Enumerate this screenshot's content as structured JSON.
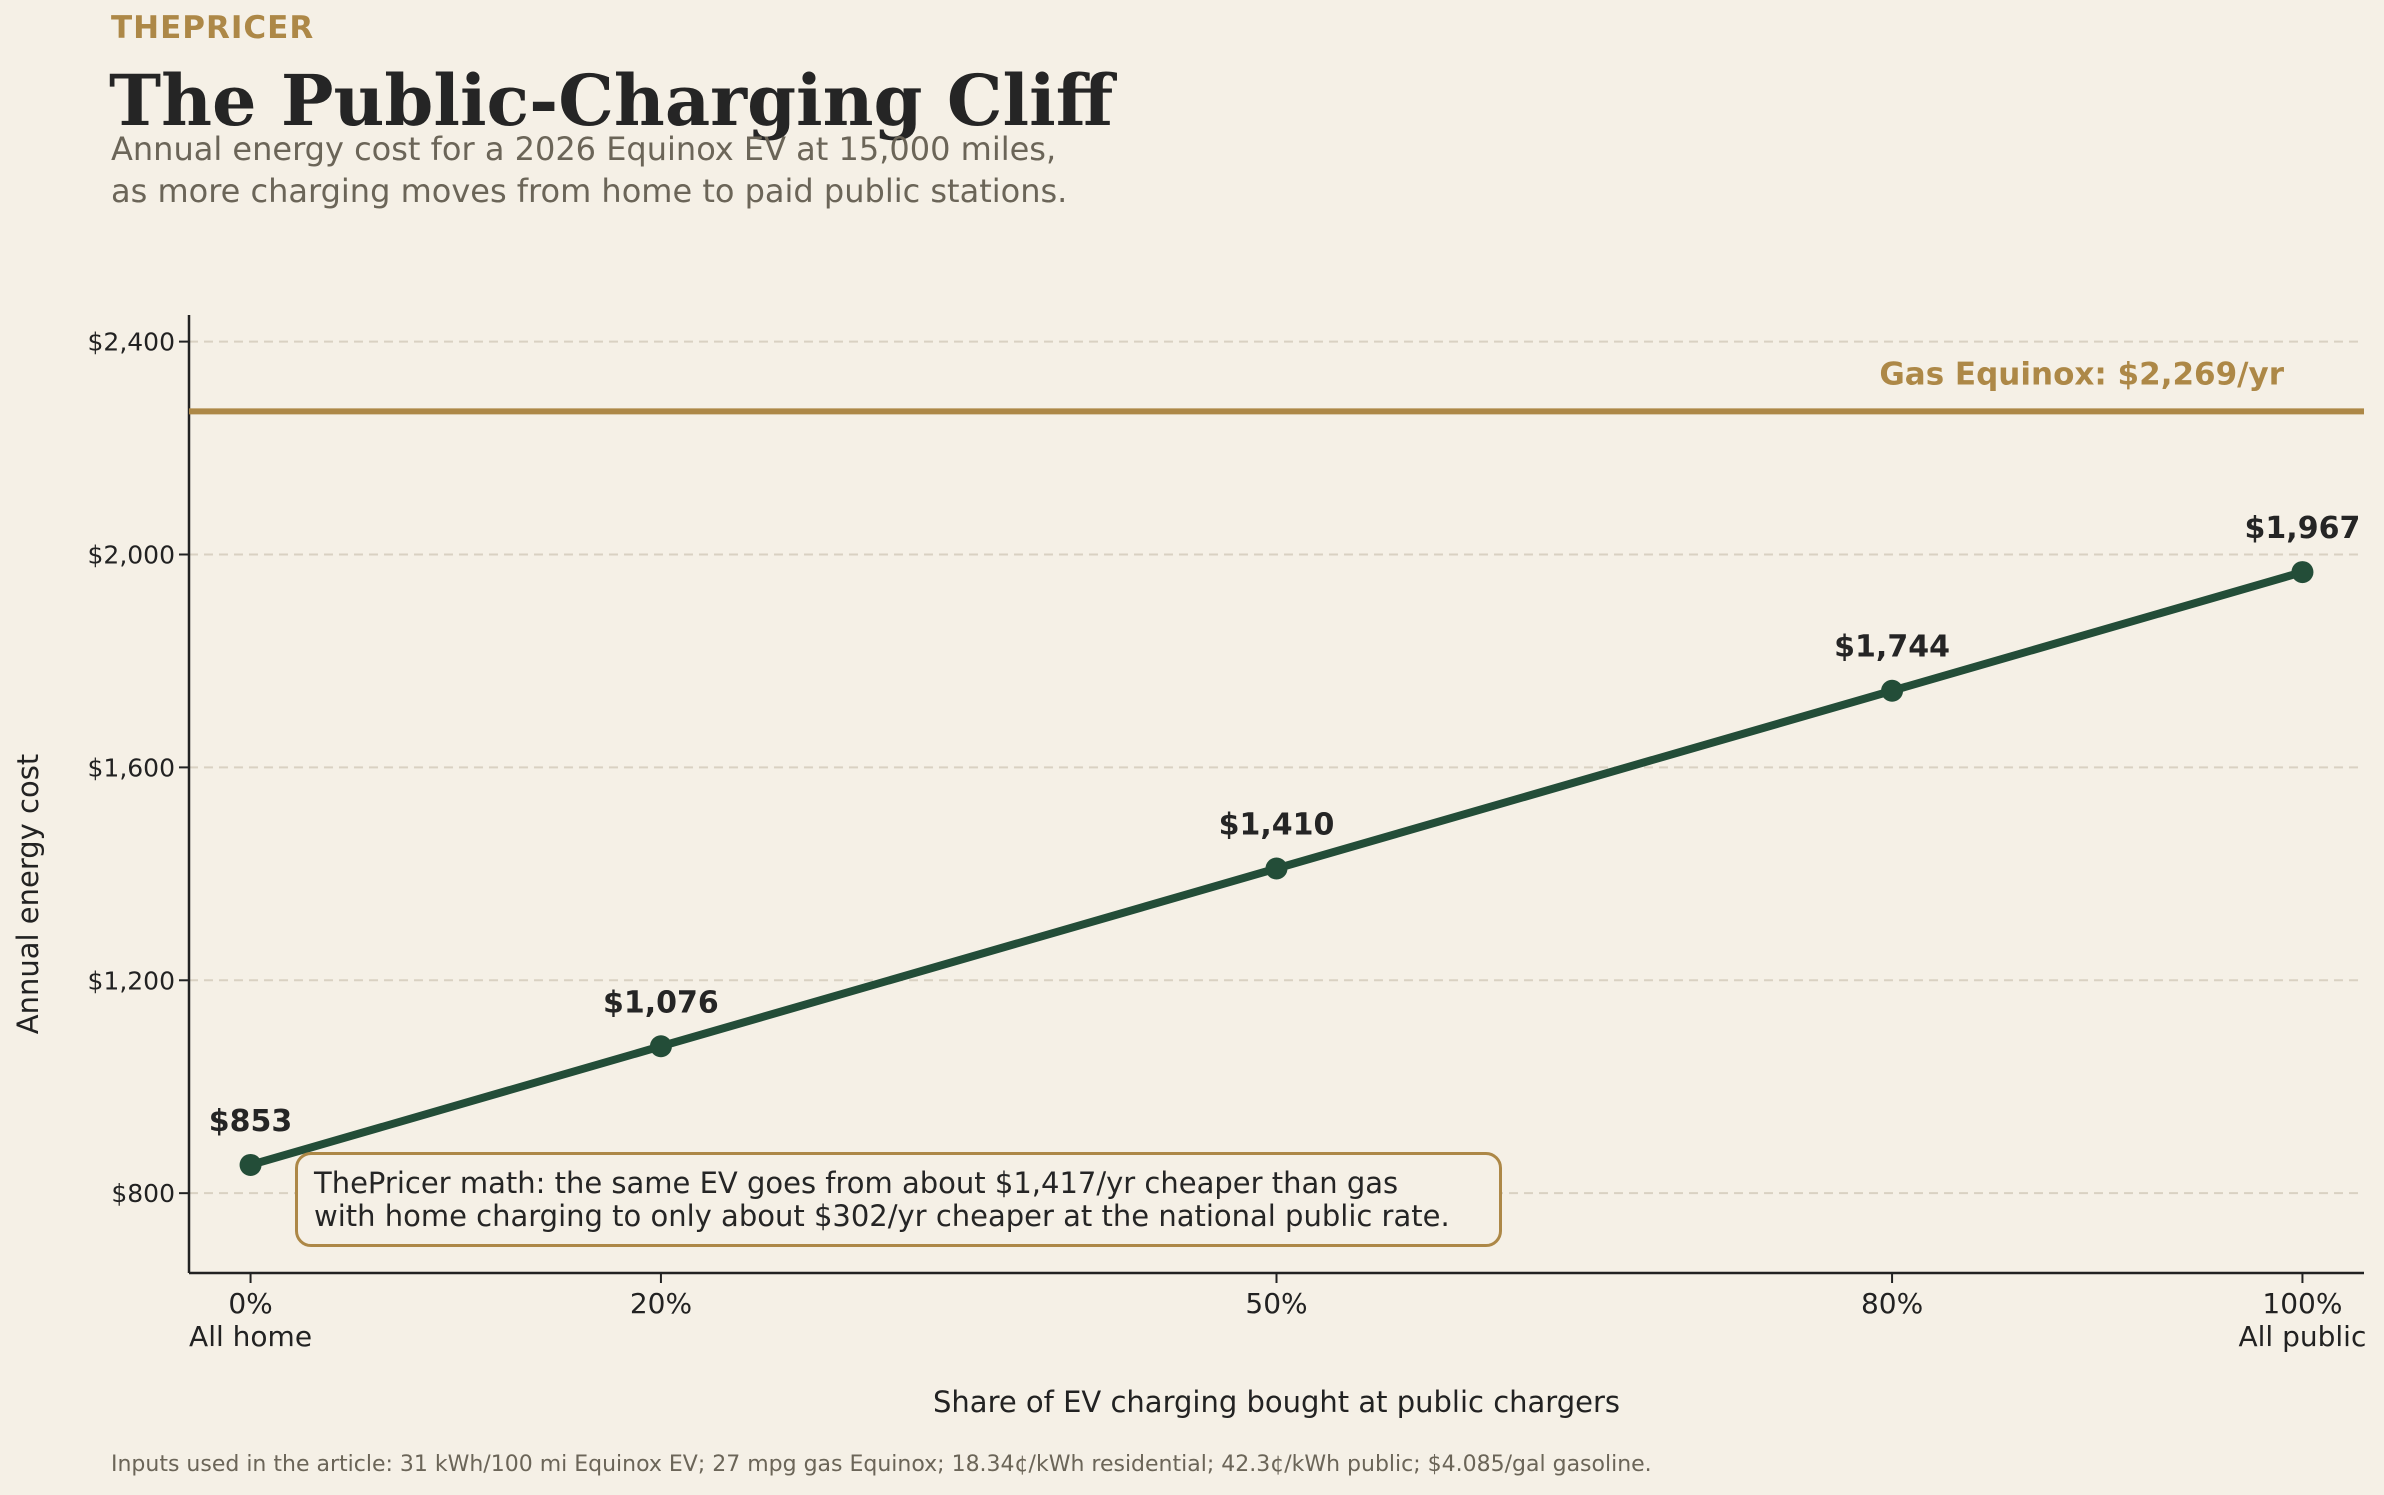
{
  "header": {
    "brand": "THEPRICER",
    "title": "The Public-Charging Cliff",
    "subtitle_line1": "Annual energy cost for a 2026 Equinox EV at 15,000 miles,",
    "subtitle_line2": "as more charging moves from home to paid public stations."
  },
  "annotation": {
    "line1": "ThePricer math: the same EV goes from about $1,417/yr cheaper than gas",
    "line2": "with home charging to only about $302/yr cheaper at the national public rate."
  },
  "footnote": "Inputs used in the article: 31 kWh/100 mi Equinox EV; 27 mpg gas Equinox; 18.34¢/kWh residential; 42.3¢/kWh public; $4.085/gal gasoline.",
  "colors": {
    "line": "#234d38",
    "gas": "#ad8847",
    "background": "#f5f0e6",
    "grid": "#d9d1c2",
    "text": "#252525"
  },
  "chart_data": {
    "type": "line",
    "xlabel": "Share of EV charging bought at public chargers",
    "ylabel": "Annual energy cost",
    "x": [
      0,
      20,
      50,
      80,
      100
    ],
    "x_tick_labels": [
      "0%",
      "20%",
      "50%",
      "80%",
      "100%"
    ],
    "x_tick_sublabels": [
      "All home",
      "",
      "",
      "",
      "All public"
    ],
    "xlim": [
      -3,
      103
    ],
    "ylim": [
      650,
      2450
    ],
    "y_ticks": [
      800,
      1200,
      1600,
      2000,
      2400
    ],
    "y_tick_labels": [
      "$800",
      "$1,200",
      "$1,600",
      "$2,000",
      "$2,400"
    ],
    "series": [
      {
        "values": [
          853,
          1076,
          1410,
          1744,
          1967
        ],
        "data_labels": [
          "$853",
          "$1,076",
          "$1,410",
          "$1,744",
          "$1,967"
        ]
      }
    ],
    "reference_line": {
      "value": 2269,
      "label": "Gas Equinox: $2,269/yr"
    },
    "grid": "horizontal dashed"
  }
}
